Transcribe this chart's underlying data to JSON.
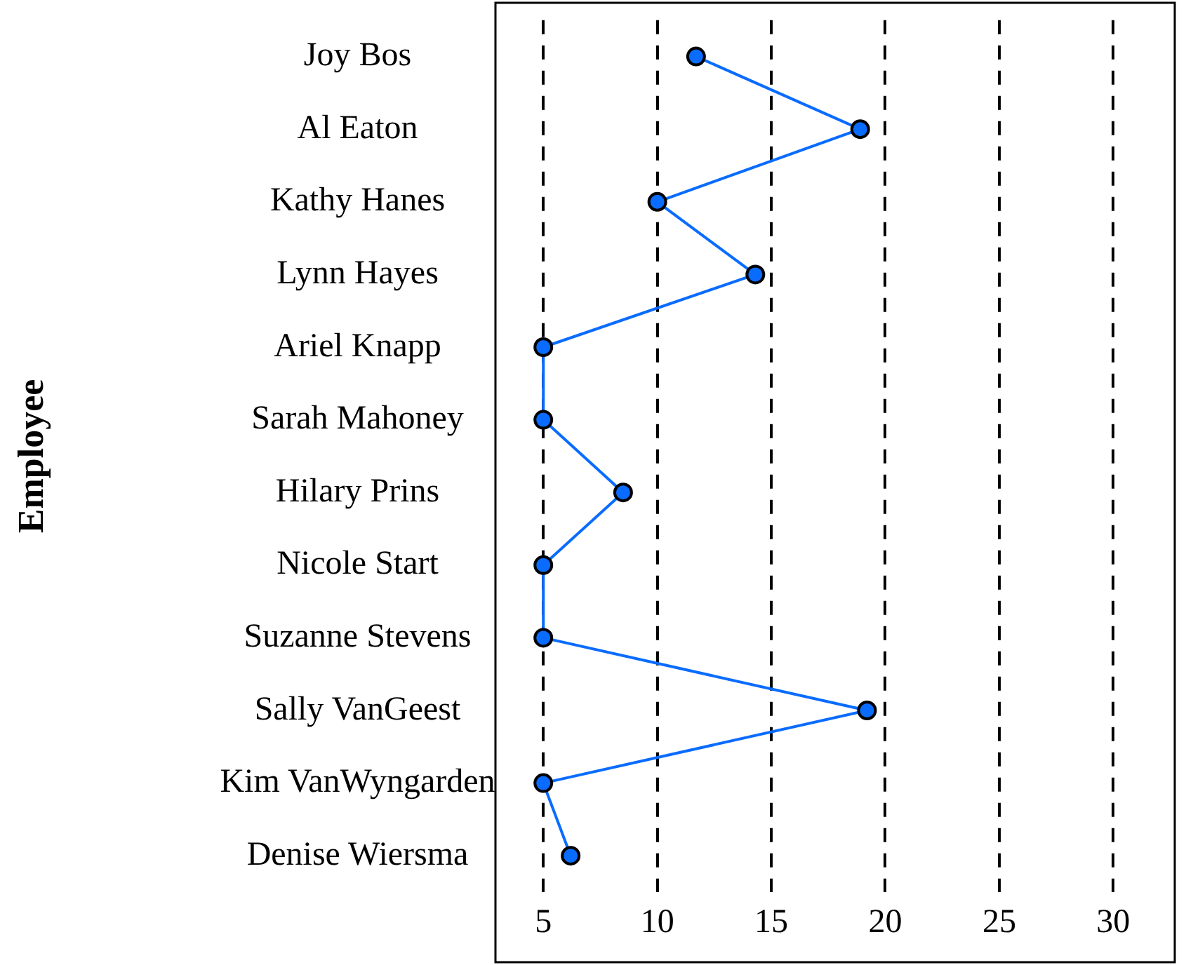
{
  "chart_data": {
    "type": "line",
    "orientation": "horizontal",
    "ylabel": "Employee",
    "categories": [
      "Joy Bos",
      "Al Eaton",
      "Kathy Hanes",
      "Lynn Hayes",
      "Ariel Knapp",
      "Sarah Mahoney",
      "Hilary Prins",
      "Nicole Start",
      "Suzanne Stevens",
      "Sally VanGeest",
      "Kim VanWyngarden",
      "Denise Wiersma"
    ],
    "series": [
      {
        "color": "#0a6cff",
        "values": [
          11.7,
          18.9,
          10,
          14.3,
          5,
          5,
          8.5,
          5,
          5,
          19.2,
          5,
          6.2
        ]
      }
    ],
    "xlim": [
      2.9,
      32.7
    ],
    "xticks": [
      5,
      10,
      15,
      20,
      25,
      30
    ],
    "grid": "x",
    "marker": "circle",
    "line_style": "solid"
  }
}
